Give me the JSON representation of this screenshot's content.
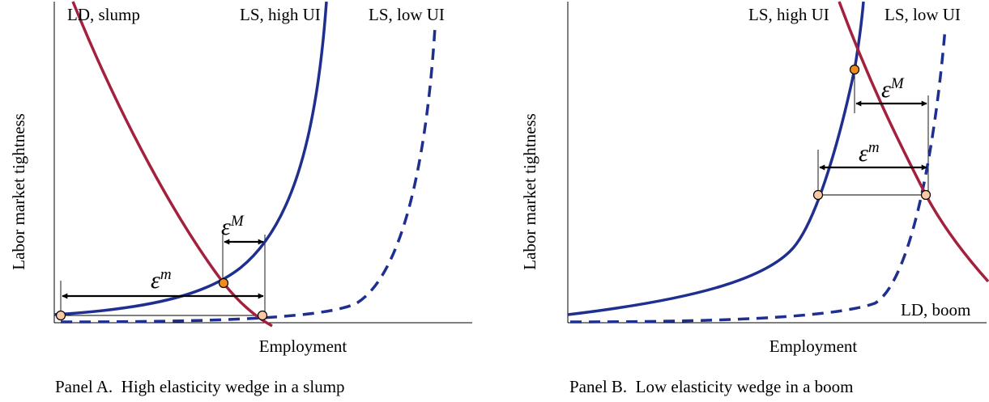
{
  "colors": {
    "labor_supply": "#1f2f8f",
    "labor_demand": "#a3203e",
    "equilibrium_point": "#f08c1e",
    "reference_point": "#f9c8a4"
  },
  "panel_a": {
    "ylabel": "Labor market tightness",
    "xlabel": "Employment",
    "ld_label": "LD, slump",
    "ls_high_label": "LS, high UI",
    "ls_low_label": "LS, low UI",
    "eps_big_base": "ε",
    "eps_big_sup": "M",
    "eps_small_base": "ε",
    "eps_small_sup": "m",
    "caption": "Panel A.  High elasticity wedge in a slump"
  },
  "panel_b": {
    "ylabel": "Labor market tightness",
    "xlabel": "Employment",
    "ld_label": "LD, boom",
    "ls_high_label": "LS, high UI",
    "ls_low_label": "LS, low UI",
    "eps_big_base": "ε",
    "eps_big_sup": "M",
    "eps_small_base": "ε",
    "eps_small_sup": "m",
    "caption": "Panel B.  Low elasticity wedge in a boom"
  }
}
